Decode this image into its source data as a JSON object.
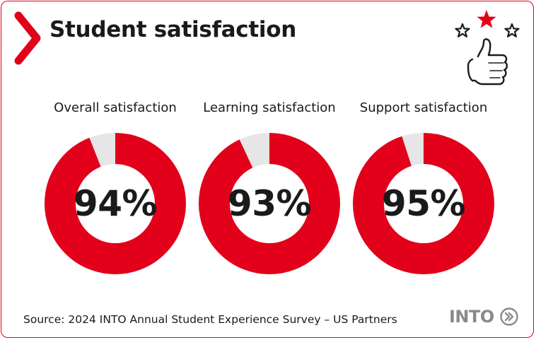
{
  "header": {
    "title": "Student satisfaction"
  },
  "colors": {
    "accent": "#e2001a",
    "track": "#e6e6e6",
    "text": "#1a1a1a",
    "logo": "#8a8a8a"
  },
  "icons": {
    "title_marker": "chevron-right-icon",
    "illustration": "thumbs-up-stars-icon",
    "logo_mark": "double-chevron-circle-icon"
  },
  "chart_data": {
    "type": "donut",
    "series": [
      {
        "name": "Overall satisfaction",
        "value": 94,
        "label": "94%"
      },
      {
        "name": "Learning satisfaction",
        "value": 93,
        "label": "93%"
      },
      {
        "name": "Support satisfaction",
        "value": 95,
        "label": "95%"
      }
    ],
    "max": 100
  },
  "footer": {
    "source": "Source: 2024 INTO Annual Student Experience Survey – US Partners",
    "logo_text": "INTO"
  }
}
